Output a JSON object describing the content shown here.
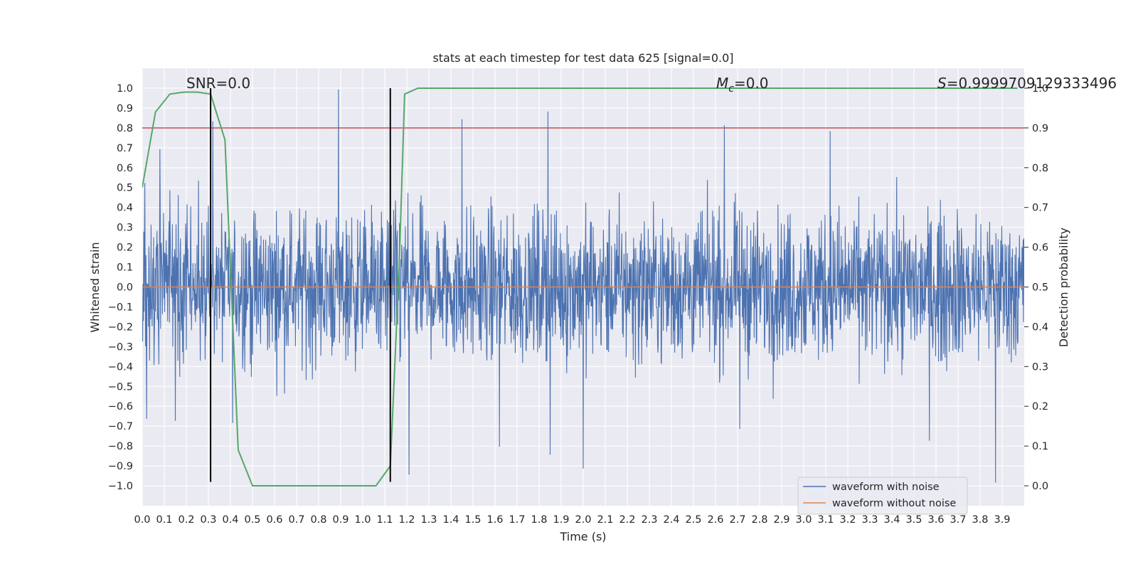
{
  "chart_data": {
    "type": "line",
    "title": "stats at each timestep for test data 625 [signal=0.0]",
    "xlabel": "Time (s)",
    "ylabel": "Whitened strain",
    "y2label": "Detection probability",
    "xlim": [
      0.0,
      4.0
    ],
    "ylim": [
      -1.1,
      1.1
    ],
    "y2lim": [
      -0.05,
      1.05
    ],
    "grid": true,
    "legend_position": "lower-right",
    "x_ticks": [
      "0.0",
      "0.1",
      "0.2",
      "0.3",
      "0.4",
      "0.5",
      "0.6",
      "0.7",
      "0.8",
      "0.9",
      "1.0",
      "1.1",
      "1.2",
      "1.3",
      "1.4",
      "1.5",
      "1.6",
      "1.7",
      "1.8",
      "1.9",
      "2.0",
      "2.1",
      "2.2",
      "2.3",
      "2.4",
      "2.5",
      "2.6",
      "2.7",
      "2.8",
      "2.9",
      "3.0",
      "3.1",
      "3.2",
      "3.3",
      "3.4",
      "3.5",
      "3.6",
      "3.7",
      "3.8",
      "3.9"
    ],
    "y_ticks": [
      "1.0",
      "0.9",
      "0.8",
      "0.7",
      "0.6",
      "0.5",
      "0.4",
      "0.3",
      "0.2",
      "0.1",
      "0.0",
      "−0.1",
      "−0.2",
      "−0.3",
      "−0.4",
      "−0.5",
      "−0.6",
      "−0.7",
      "−0.8",
      "−0.9",
      "−1.0"
    ],
    "y2_ticks": [
      "1.0",
      "0.9",
      "0.8",
      "0.7",
      "0.6",
      "0.5",
      "0.4",
      "0.3",
      "0.2",
      "0.1",
      "0.0"
    ],
    "annotations": {
      "snr": "SNR=0.0",
      "mc_symbol": "M",
      "mc_sub": "c",
      "mc_value": "=0.0",
      "s_symbol": "S",
      "s_value": "=0.9999709129333496"
    },
    "series": [
      {
        "name": "waveform with noise",
        "color": "#4c72b0",
        "description": "whitened noisy strain, dense oscillation between about -0.4 and 0.4 with spikes",
        "peaks": [
          {
            "x": 0.012,
            "y": 0.52
          },
          {
            "x": 0.02,
            "y": -0.66
          },
          {
            "x": 0.08,
            "y": 0.69
          },
          {
            "x": 0.15,
            "y": -0.67
          },
          {
            "x": 0.32,
            "y": 0.83
          },
          {
            "x": 0.41,
            "y": -0.68
          },
          {
            "x": 0.89,
            "y": 0.99
          },
          {
            "x": 1.21,
            "y": -0.94
          },
          {
            "x": 1.45,
            "y": 0.84
          },
          {
            "x": 1.62,
            "y": -0.8
          },
          {
            "x": 1.84,
            "y": 0.88
          },
          {
            "x": 1.85,
            "y": -0.84
          },
          {
            "x": 2.0,
            "y": -0.91
          },
          {
            "x": 2.64,
            "y": 0.81
          },
          {
            "x": 2.71,
            "y": -0.71
          },
          {
            "x": 3.12,
            "y": 0.78
          },
          {
            "x": 3.57,
            "y": -0.77
          },
          {
            "x": 3.87,
            "y": -0.98
          }
        ]
      },
      {
        "name": "waveform without noise",
        "color": "#dd8452",
        "x": [
          0.0,
          4.0
        ],
        "y": [
          0.0,
          0.0
        ]
      },
      {
        "axis": "right",
        "color": "#55a868",
        "x": [
          0.0,
          0.06,
          0.125,
          0.19,
          0.25,
          0.31,
          0.375,
          0.435,
          0.5,
          0.56,
          1.0,
          1.06,
          1.125,
          1.165,
          1.19,
          1.25,
          1.5,
          2.0,
          2.5,
          3.0,
          3.5,
          3.97
        ],
        "y": [
          0.75,
          0.94,
          0.985,
          0.99,
          0.99,
          0.985,
          0.87,
          0.09,
          0.0,
          0.0,
          0.0,
          0.0,
          0.05,
          0.55,
          0.985,
          1.0,
          1.0,
          1.0,
          1.0,
          1.0,
          1.0,
          1.0
        ]
      }
    ],
    "hlines": [
      {
        "axis": "left",
        "y": 0.8,
        "color": "#c44e52"
      }
    ],
    "vlines": [
      {
        "x": 0.31,
        "y_range": [
          -0.98,
          1.0
        ],
        "color": "#000000"
      },
      {
        "x": 1.125,
        "y_range": [
          -0.98,
          1.0
        ],
        "color": "#000000"
      }
    ]
  }
}
